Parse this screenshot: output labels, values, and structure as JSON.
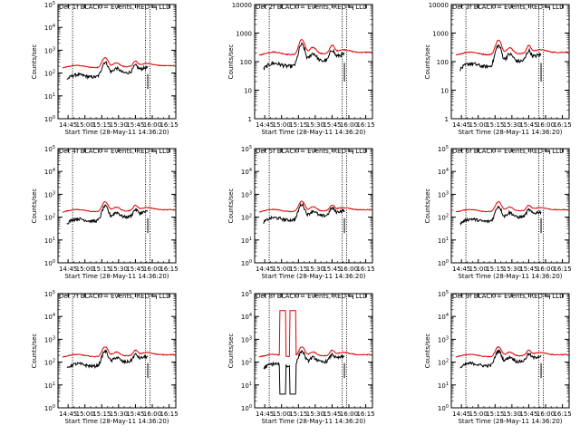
{
  "figure": {
    "xlabel": "Start Time (28-May-11 14:36:20)",
    "ylabel": "Counts/sec",
    "x_ticks": [
      "14:45",
      "15:00",
      "15:15",
      "15:30",
      "15:45",
      "16:00",
      "16:15"
    ],
    "legend": {
      "black": "BLACK = Events,",
      "red": "RED = LLD"
    },
    "colors": {
      "events": "#000000",
      "lld": "#e00000",
      "frame": "#000000",
      "background": "#ffffff"
    }
  },
  "chart_data": [
    {
      "type": "line",
      "title": "Det 1f",
      "ylog": true,
      "ylim": [
        1,
        100000
      ],
      "y_ticks": [
        "10^0",
        "10^1",
        "10^2",
        "10^3",
        "10^4",
        "10^5"
      ],
      "xlim": [
        "14:36",
        "16:21"
      ],
      "vlines": [
        "14:49",
        "15:54",
        "15:58"
      ],
      "events_scale": 0.72,
      "flare_boost": 1,
      "saturation_spikes": false
    },
    {
      "type": "line",
      "title": "Det 2f",
      "ylog": true,
      "ylim": [
        1,
        10000
      ],
      "y_ticks": [
        "1",
        "10",
        "100",
        "1000",
        "10000"
      ],
      "xlim": [
        "14:36",
        "16:21"
      ],
      "vlines": [
        "14:49",
        "15:54",
        "15:58"
      ],
      "events_scale": 0.74,
      "flare_boost": 1.4,
      "saturation_spikes": false
    },
    {
      "type": "line",
      "title": "Det 3f",
      "ylog": true,
      "ylim": [
        1,
        10000
      ],
      "y_ticks": [
        "1",
        "10",
        "100",
        "1000",
        "10000"
      ],
      "xlim": [
        "14:36",
        "16:21"
      ],
      "vlines": [
        "14:49",
        "15:54",
        "15:58"
      ],
      "events_scale": 0.72,
      "flare_boost": 1.3,
      "saturation_spikes": false
    },
    {
      "type": "line",
      "title": "Det 4f",
      "ylog": true,
      "ylim": [
        1,
        100000
      ],
      "y_ticks": [
        "10^0",
        "10^1",
        "10^2",
        "10^3",
        "10^4",
        "10^5"
      ],
      "xlim": [
        "14:36",
        "16:21"
      ],
      "vlines": [
        "14:49",
        "15:54",
        "15:58"
      ],
      "events_scale": 0.72,
      "flare_boost": 1,
      "saturation_spikes": false
    },
    {
      "type": "line",
      "title": "Det 5f",
      "ylog": true,
      "ylim": [
        1,
        100000
      ],
      "y_ticks": [
        "10^0",
        "10^1",
        "10^2",
        "10^3",
        "10^4",
        "10^5"
      ],
      "xlim": [
        "14:36",
        "16:21"
      ],
      "vlines": [
        "14:49",
        "15:54",
        "15:58"
      ],
      "events_scale": 0.8,
      "flare_boost": 1.1,
      "saturation_spikes": false
    },
    {
      "type": "line",
      "title": "Det 6f",
      "ylog": true,
      "ylim": [
        1,
        100000
      ],
      "y_ticks": [
        "10^0",
        "10^1",
        "10^2",
        "10^3",
        "10^4",
        "10^5"
      ],
      "xlim": [
        "14:36",
        "16:21"
      ],
      "vlines": [
        "14:49",
        "15:54",
        "15:58"
      ],
      "events_scale": 0.7,
      "flare_boost": 1,
      "saturation_spikes": false
    },
    {
      "type": "line",
      "title": "Det 7f",
      "ylog": true,
      "ylim": [
        1,
        100000
      ],
      "y_ticks": [
        "10^0",
        "10^1",
        "10^2",
        "10^3",
        "10^4",
        "10^5"
      ],
      "xlim": [
        "14:36",
        "16:21"
      ],
      "vlines": [
        "14:49",
        "15:54",
        "15:58"
      ],
      "events_scale": 0.72,
      "flare_boost": 1,
      "saturation_spikes": false
    },
    {
      "type": "line",
      "title": "Det 8f",
      "ylog": true,
      "ylim": [
        1,
        100000
      ],
      "y_ticks": [
        "10^0",
        "10^1",
        "10^2",
        "10^3",
        "10^4",
        "10^5"
      ],
      "xlim": [
        "14:36",
        "16:21"
      ],
      "vlines": [
        "14:49",
        "15:54",
        "15:58"
      ],
      "events_scale": 0.72,
      "flare_boost": 1,
      "saturation_spikes": true
    },
    {
      "type": "line",
      "title": "Det 9f",
      "ylog": true,
      "ylim": [
        1,
        100000
      ],
      "y_ticks": [
        "10^0",
        "10^1",
        "10^2",
        "10^3",
        "10^4",
        "10^5"
      ],
      "xlim": [
        "14:36",
        "16:21"
      ],
      "vlines": [
        "14:49",
        "15:54",
        "15:58"
      ],
      "events_scale": 0.75,
      "flare_boost": 1,
      "saturation_spikes": false
    }
  ]
}
